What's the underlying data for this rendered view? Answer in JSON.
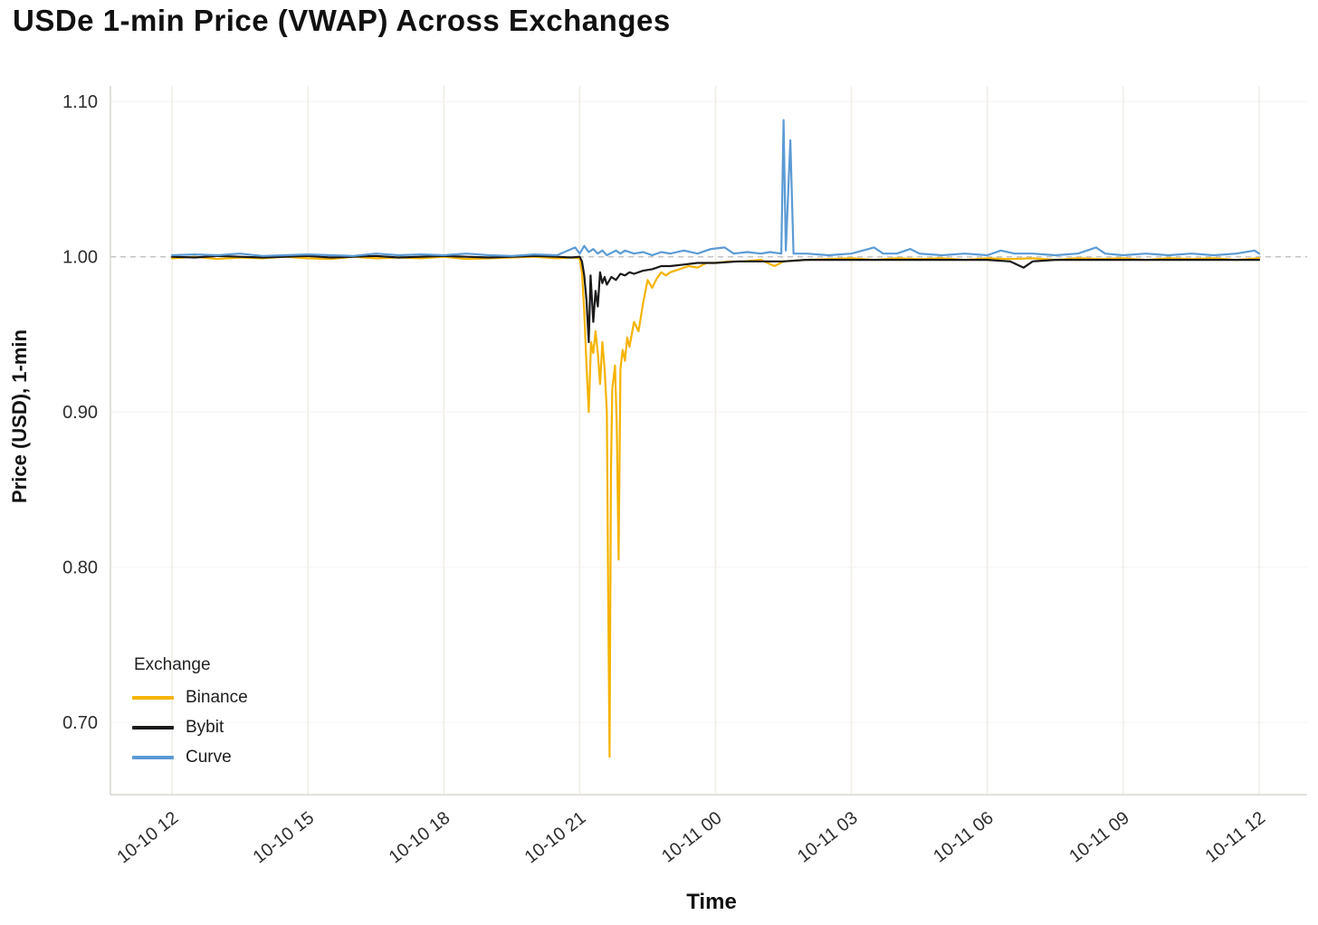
{
  "title": "USDe 1-min Price (VWAP) Across Exchanges",
  "chart_data": {
    "type": "line",
    "title": "USDe 1-min Price (VWAP) Across Exchanges",
    "xlabel": "Time",
    "ylabel": "Price (USD), 1-min",
    "x_unit_note": "hours offset from first x tick (10-10 12)",
    "xlim": [
      -1.36,
      25.06
    ],
    "ylim": [
      0.6535,
      1.11
    ],
    "grid": true,
    "reference_line_y": 1.0,
    "x_tick_positions": [
      0,
      3,
      6,
      9,
      12,
      15,
      18,
      21,
      24
    ],
    "x_tick_labels": [
      "10-10 12",
      "10-10 15",
      "10-10 18",
      "10-10 21",
      "10-11 00",
      "10-11 03",
      "10-11 06",
      "10-11 09",
      "10-11 12"
    ],
    "y_ticks": [
      0.7,
      0.8,
      0.9,
      1.0,
      1.1
    ],
    "y_tick_labels": [
      "0.70",
      "0.80",
      "0.90",
      "1.00",
      "1.10"
    ],
    "legend": {
      "title": "Exchange",
      "position": "lower-left"
    },
    "colors": {
      "grid": "#f0ede7",
      "reference_dashed": "#c4c4c4",
      "spine": "#d8d5cd"
    },
    "series": [
      {
        "name": "Binance",
        "color": "#F5B301",
        "points": [
          [
            0,
            0.999
          ],
          [
            0.5,
            1.0
          ],
          [
            1,
            0.9985
          ],
          [
            1.5,
            0.9995
          ],
          [
            2,
            0.999
          ],
          [
            2.5,
            1.0
          ],
          [
            3,
            0.999
          ],
          [
            3.5,
            0.9985
          ],
          [
            4,
            1.0
          ],
          [
            4.5,
            0.999
          ],
          [
            5,
            0.9995
          ],
          [
            5.5,
            0.999
          ],
          [
            6,
            1.0
          ],
          [
            6.5,
            0.9985
          ],
          [
            7,
            0.999
          ],
          [
            7.5,
            0.9995
          ],
          [
            8,
            1.0
          ],
          [
            8.5,
            0.999
          ],
          [
            8.8,
            0.9995
          ],
          [
            9,
            0.999
          ],
          [
            9.05,
            0.99
          ],
          [
            9.1,
            0.965
          ],
          [
            9.15,
            0.93
          ],
          [
            9.2,
            0.9
          ],
          [
            9.25,
            0.945
          ],
          [
            9.3,
            0.938
          ],
          [
            9.35,
            0.952
          ],
          [
            9.4,
            0.938
          ],
          [
            9.45,
            0.918
          ],
          [
            9.5,
            0.945
          ],
          [
            9.55,
            0.928
          ],
          [
            9.6,
            0.9
          ],
          [
            9.63,
            0.78
          ],
          [
            9.66,
            0.678
          ],
          [
            9.69,
            0.86
          ],
          [
            9.72,
            0.915
          ],
          [
            9.78,
            0.93
          ],
          [
            9.82,
            0.89
          ],
          [
            9.86,
            0.805
          ],
          [
            9.9,
            0.928
          ],
          [
            9.95,
            0.94
          ],
          [
            10,
            0.933
          ],
          [
            10.05,
            0.948
          ],
          [
            10.1,
            0.942
          ],
          [
            10.2,
            0.958
          ],
          [
            10.3,
            0.952
          ],
          [
            10.4,
            0.97
          ],
          [
            10.5,
            0.985
          ],
          [
            10.6,
            0.98
          ],
          [
            10.7,
            0.986
          ],
          [
            10.8,
            0.99
          ],
          [
            10.9,
            0.988
          ],
          [
            11,
            0.99
          ],
          [
            11.2,
            0.992
          ],
          [
            11.4,
            0.994
          ],
          [
            11.6,
            0.993
          ],
          [
            11.8,
            0.996
          ],
          [
            12,
            0.996
          ],
          [
            12.3,
            0.997
          ],
          [
            12.6,
            0.997
          ],
          [
            13,
            0.998
          ],
          [
            13.3,
            0.994
          ],
          [
            13.5,
            0.997
          ],
          [
            14,
            0.998
          ],
          [
            14.5,
            0.9985
          ],
          [
            15,
            0.999
          ],
          [
            15.5,
            0.998
          ],
          [
            16,
            0.999
          ],
          [
            16.5,
            0.9985
          ],
          [
            17,
            0.999
          ],
          [
            17.5,
            0.998
          ],
          [
            18,
            0.999
          ],
          [
            18.5,
            0.9985
          ],
          [
            19,
            0.999
          ],
          [
            19.5,
            0.998
          ],
          [
            20,
            0.999
          ],
          [
            20.5,
            0.9985
          ],
          [
            21,
            0.999
          ],
          [
            21.5,
            0.998
          ],
          [
            22,
            0.999
          ],
          [
            22.5,
            0.9985
          ],
          [
            23,
            0.999
          ],
          [
            23.5,
            0.998
          ],
          [
            24,
            0.999
          ]
        ]
      },
      {
        "name": "Bybit",
        "color": "#1a1a1a",
        "points": [
          [
            0,
            1.0
          ],
          [
            0.5,
            0.9995
          ],
          [
            1,
            1.0005
          ],
          [
            1.5,
            1.0
          ],
          [
            2,
            0.9995
          ],
          [
            2.5,
            1.0
          ],
          [
            3,
            1.0005
          ],
          [
            3.5,
            0.9995
          ],
          [
            4,
            1.0
          ],
          [
            4.5,
            1.0005
          ],
          [
            5,
            0.9995
          ],
          [
            5.5,
            1.0
          ],
          [
            6,
            1.0005
          ],
          [
            6.5,
            1.0
          ],
          [
            7,
            0.9995
          ],
          [
            7.5,
            1.0
          ],
          [
            8,
            1.0005
          ],
          [
            8.5,
            1.0
          ],
          [
            8.8,
            0.9995
          ],
          [
            9,
            1.0
          ],
          [
            9.05,
            0.997
          ],
          [
            9.1,
            0.988
          ],
          [
            9.15,
            0.972
          ],
          [
            9.2,
            0.945
          ],
          [
            9.24,
            0.988
          ],
          [
            9.3,
            0.958
          ],
          [
            9.35,
            0.978
          ],
          [
            9.4,
            0.968
          ],
          [
            9.45,
            0.99
          ],
          [
            9.5,
            0.983
          ],
          [
            9.55,
            0.987
          ],
          [
            9.6,
            0.982
          ],
          [
            9.7,
            0.987
          ],
          [
            9.8,
            0.985
          ],
          [
            9.9,
            0.989
          ],
          [
            10,
            0.988
          ],
          [
            10.1,
            0.99
          ],
          [
            10.2,
            0.989
          ],
          [
            10.4,
            0.991
          ],
          [
            10.6,
            0.992
          ],
          [
            10.8,
            0.994
          ],
          [
            11,
            0.994
          ],
          [
            11.3,
            0.995
          ],
          [
            11.6,
            0.996
          ],
          [
            12,
            0.996
          ],
          [
            12.5,
            0.997
          ],
          [
            13,
            0.997
          ],
          [
            13.5,
            0.997
          ],
          [
            14,
            0.998
          ],
          [
            15,
            0.998
          ],
          [
            16,
            0.998
          ],
          [
            17,
            0.998
          ],
          [
            18,
            0.998
          ],
          [
            18.5,
            0.997
          ],
          [
            18.8,
            0.993
          ],
          [
            19,
            0.997
          ],
          [
            19.5,
            0.998
          ],
          [
            20,
            0.998
          ],
          [
            21,
            0.998
          ],
          [
            22,
            0.998
          ],
          [
            23,
            0.998
          ],
          [
            24,
            0.998
          ]
        ]
      },
      {
        "name": "Curve",
        "color": "#5B9BD5",
        "points": [
          [
            0,
            1.001
          ],
          [
            0.5,
            1.0015
          ],
          [
            1,
            1.001
          ],
          [
            1.5,
            1.002
          ],
          [
            2,
            1.0005
          ],
          [
            2.5,
            1.001
          ],
          [
            3,
            1.0015
          ],
          [
            3.5,
            1.001
          ],
          [
            4,
            1.0005
          ],
          [
            4.5,
            1.002
          ],
          [
            5,
            1.001
          ],
          [
            5.5,
            1.0015
          ],
          [
            6,
            1.001
          ],
          [
            6.5,
            1.002
          ],
          [
            7,
            1.001
          ],
          [
            7.5,
            1.0005
          ],
          [
            8,
            1.0015
          ],
          [
            8.5,
            1.001
          ],
          [
            8.9,
            1.006
          ],
          [
            9,
            1.002
          ],
          [
            9.1,
            1.007
          ],
          [
            9.2,
            1.003
          ],
          [
            9.3,
            1.005
          ],
          [
            9.4,
            1.002
          ],
          [
            9.5,
            1.004
          ],
          [
            9.6,
            1.001
          ],
          [
            9.8,
            1.004
          ],
          [
            9.9,
            1.002
          ],
          [
            10,
            1.004
          ],
          [
            10.2,
            1.002
          ],
          [
            10.4,
            1.003
          ],
          [
            10.6,
            1.001
          ],
          [
            10.8,
            1.003
          ],
          [
            11,
            1.002
          ],
          [
            11.3,
            1.004
          ],
          [
            11.6,
            1.002
          ],
          [
            11.9,
            1.005
          ],
          [
            12.2,
            1.006
          ],
          [
            12.4,
            1.002
          ],
          [
            12.7,
            1.003
          ],
          [
            13,
            1.002
          ],
          [
            13.2,
            1.003
          ],
          [
            13.45,
            1.002
          ],
          [
            13.5,
            1.088
          ],
          [
            13.55,
            1.004
          ],
          [
            13.65,
            1.075
          ],
          [
            13.72,
            1.002
          ],
          [
            14,
            1.002
          ],
          [
            14.5,
            1.001
          ],
          [
            15,
            1.002
          ],
          [
            15.5,
            1.006
          ],
          [
            15.7,
            1.002
          ],
          [
            16,
            1.002
          ],
          [
            16.3,
            1.005
          ],
          [
            16.5,
            1.002
          ],
          [
            17,
            1.001
          ],
          [
            17.5,
            1.002
          ],
          [
            18,
            1.001
          ],
          [
            18.3,
            1.004
          ],
          [
            18.6,
            1.002
          ],
          [
            19,
            1.002
          ],
          [
            19.5,
            1.001
          ],
          [
            20,
            1.002
          ],
          [
            20.4,
            1.006
          ],
          [
            20.6,
            1.002
          ],
          [
            21,
            1.001
          ],
          [
            21.5,
            1.002
          ],
          [
            22,
            1.001
          ],
          [
            22.5,
            1.002
          ],
          [
            23,
            1.001
          ],
          [
            23.5,
            1.002
          ],
          [
            23.9,
            1.004
          ],
          [
            24,
            1.002
          ]
        ]
      }
    ]
  }
}
